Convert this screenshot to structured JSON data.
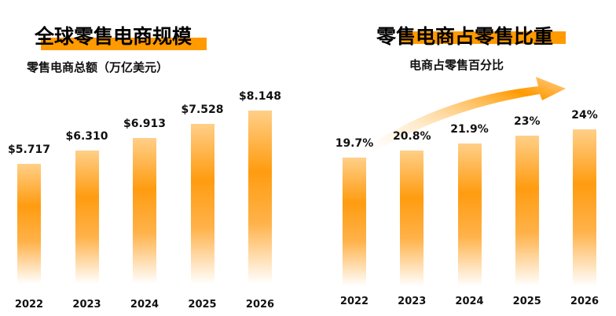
{
  "chart_data": [
    {
      "type": "bar",
      "title": "全球零售电商规模",
      "subtitle": "零售电商总额（万亿美元）",
      "categories": [
        "2022",
        "2023",
        "2024",
        "2025",
        "2026"
      ],
      "values": [
        5.717,
        6.31,
        6.913,
        7.528,
        8.148
      ],
      "labels": [
        "$5.717",
        "$6.310",
        "$6.913",
        "$7.528",
        "$8.148"
      ],
      "grid": false
    },
    {
      "type": "bar",
      "title": "零售电商占零售比重",
      "subtitle": "电商占零售百分比",
      "categories": [
        "2022",
        "2023",
        "2024",
        "2025",
        "2026"
      ],
      "values": [
        19.7,
        20.8,
        21.9,
        23,
        24
      ],
      "labels": [
        "19.7%",
        "20.8%",
        "21.9%",
        "23%",
        "24%"
      ],
      "grid": false,
      "annotation": "rising-arrow"
    }
  ],
  "colors": {
    "accent": "#ff9a00"
  }
}
